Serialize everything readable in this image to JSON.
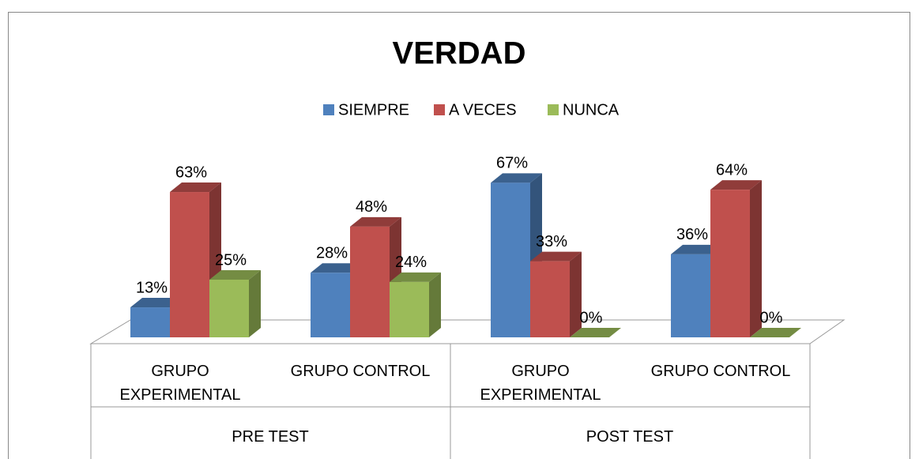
{
  "chart_data": {
    "type": "bar3d",
    "title": "VERDAD",
    "groups": [
      "PRE TEST",
      "POST TEST"
    ],
    "categories": [
      "GRUPO EXPERIMENTAL",
      "GRUPO CONTROL",
      "GRUPO EXPERIMENTAL",
      "GRUPO CONTROL"
    ],
    "series": [
      {
        "name": "SIEMPRE",
        "color": "#4f81bd",
        "values": [
          13,
          28,
          67,
          36
        ],
        "value_labels": [
          "13%",
          "28%",
          "67%",
          "36%"
        ]
      },
      {
        "name": "A VECES",
        "color": "#c0504d",
        "values": [
          63,
          48,
          33,
          64
        ],
        "value_labels": [
          "63%",
          "48%",
          "33%",
          "64%"
        ]
      },
      {
        "name": "NUNCA",
        "color": "#9bbb59",
        "values": [
          25,
          24,
          0,
          0
        ],
        "value_labels": [
          "25%",
          "24%",
          "0%",
          "0%"
        ]
      }
    ],
    "legend": "top"
  }
}
